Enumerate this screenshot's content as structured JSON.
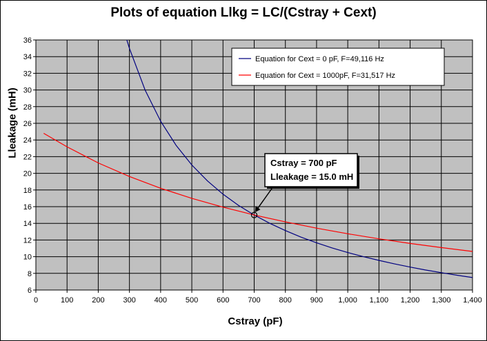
{
  "chart_data": {
    "type": "line",
    "title": "Plots of equation Llkg = LC/(Cstray + Cext)",
    "xlabel": "Cstray (pF)",
    "ylabel": "Lleakage (mH)",
    "xlim": [
      0,
      1400
    ],
    "ylim": [
      6,
      36
    ],
    "x_ticks": [
      "0",
      "100",
      "200",
      "300",
      "400",
      "500",
      "600",
      "700",
      "800",
      "900",
      "1,000",
      "1,100",
      "1,200",
      "1,300",
      "1,400"
    ],
    "y_ticks": [
      "6",
      "8",
      "10",
      "12",
      "14",
      "16",
      "18",
      "20",
      "22",
      "24",
      "26",
      "28",
      "30",
      "32",
      "34",
      "36"
    ],
    "grid": true,
    "plot_background": "#c0c0c0",
    "legend_position": "top-right",
    "series": [
      {
        "name": "Equation for Cext =  0 pF, F=49,116 Hz",
        "color": "#000080",
        "x": [
          290,
          300,
          350,
          400,
          450,
          500,
          550,
          600,
          650,
          700,
          750,
          800,
          850,
          900,
          950,
          1000,
          1050,
          1100,
          1150,
          1200,
          1250,
          1300,
          1350,
          1400
        ],
        "y": [
          36.2,
          35.0,
          30.0,
          26.25,
          23.33,
          21.0,
          19.09,
          17.5,
          16.15,
          15.0,
          14.0,
          13.13,
          12.35,
          11.67,
          11.05,
          10.5,
          10.0,
          9.55,
          9.13,
          8.75,
          8.4,
          8.08,
          7.78,
          7.5
        ]
      },
      {
        "name": "Equation for Cext = 1000pF, F=31,517 Hz",
        "color": "#ff0000",
        "x": [
          25,
          100,
          200,
          300,
          400,
          500,
          600,
          700,
          800,
          900,
          1000,
          1100,
          1200,
          1300,
          1400
        ],
        "y": [
          24.8,
          23.18,
          21.25,
          19.62,
          18.21,
          17.0,
          15.94,
          15.0,
          14.17,
          13.42,
          12.75,
          12.14,
          11.59,
          11.09,
          10.63
        ]
      }
    ],
    "annotations": [
      {
        "lines": [
          "Cstray = 700 pF",
          "Lleakage = 15.0 mH"
        ],
        "x": 700,
        "y": 15.0
      }
    ]
  }
}
